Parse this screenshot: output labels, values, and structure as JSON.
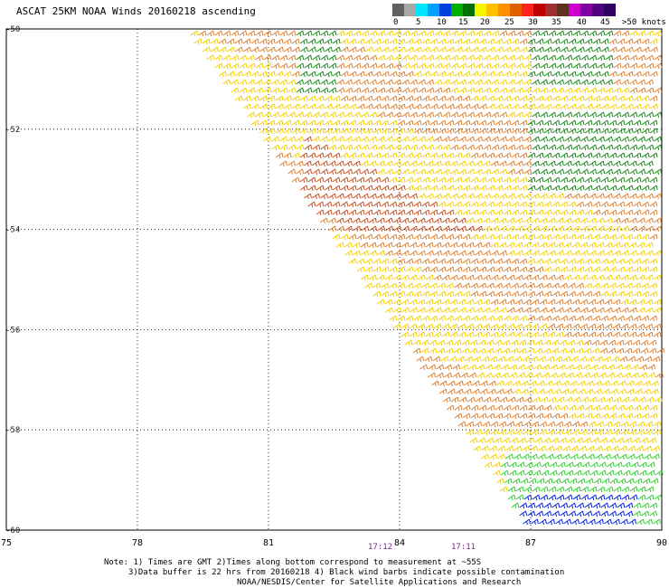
{
  "title": "ASCAT 25KM NOAA Winds 20160218 ascending",
  "legend": {
    "labels": [
      "0",
      "5",
      "10",
      "15",
      "20",
      "25",
      "30",
      "35",
      "40",
      "45",
      ">50 knots"
    ],
    "colors": [
      "#606060",
      "#a8a8a8",
      "#00e6ff",
      "#00a0ff",
      "#0040e0",
      "#00b000",
      "#007000",
      "#f5f500",
      "#ffc000",
      "#ff9000",
      "#e06000",
      "#ff2020",
      "#c00000",
      "#a03030",
      "#603020",
      "#d000d0",
      "#8000a0",
      "#500080",
      "#300060"
    ]
  },
  "axes": {
    "lon_labels": [
      "75",
      "78",
      "81",
      "84",
      "87",
      "90"
    ],
    "lat_labels": [
      "-50",
      "-52",
      "-54",
      "-56",
      "-58",
      "-60"
    ]
  },
  "times": [
    "17:12",
    "17:11"
  ],
  "notes": [
    "Note: 1) Times are GMT 2)Times along bottom correspond to measurement at ~55S",
    "3)Data buffer is 22 hrs from 20160218 4) Black wind barbs indicate possible contamination",
    "NOAA/NESDIS/Center for Satellite Applications and Research"
  ],
  "map_data": {
    "type": "wind_barbs",
    "lon_range": [
      75,
      90
    ],
    "lat_range": [
      -60,
      -50
    ],
    "swath_edge": [
      [
        79.2,
        -50
      ],
      [
        84,
        -56
      ],
      [
        87,
        -60
      ]
    ],
    "regions": [
      {
        "color": "#f5d000",
        "coverage": "default"
      },
      {
        "color": "#e08030",
        "coverage": "orange bands"
      },
      {
        "color": "#c85020",
        "coverage": "strong core near -53, 82-86"
      },
      {
        "color": "#1a8a1a",
        "coverage": "northeast near -50 to -53, 87-90"
      },
      {
        "color": "#30d030",
        "coverage": "south near -59, 87-90"
      },
      {
        "color": "#0020e0",
        "coverage": "south near -60, 87-89"
      }
    ]
  }
}
